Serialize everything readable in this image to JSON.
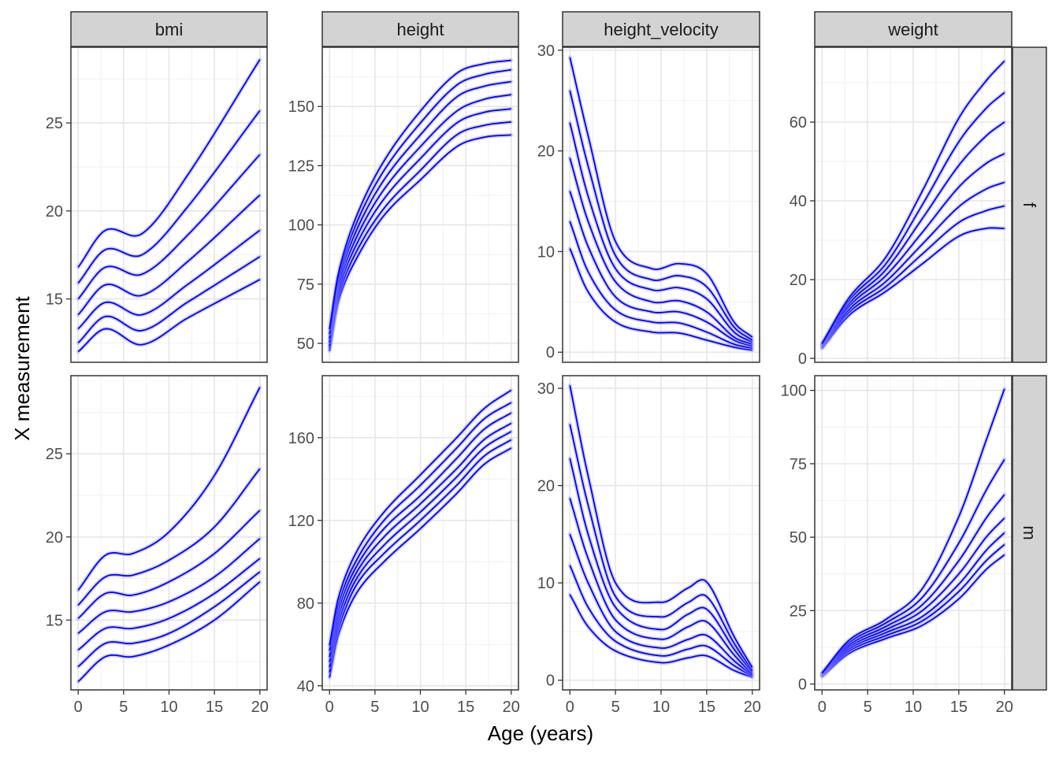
{
  "figure": {
    "xlabel": "Age (years)",
    "ylabel": "X measurement"
  },
  "chart_data": {
    "type": "line",
    "facet_columns": [
      "bmi",
      "height",
      "height_velocity",
      "weight"
    ],
    "facet_rows": [
      "f",
      "m"
    ],
    "xlim": [
      -0.8,
      20.8
    ],
    "x_ticks": [
      0,
      5,
      10,
      15,
      20
    ],
    "x_tick_labels": [
      "0",
      "5",
      "10",
      "15",
      "20"
    ],
    "grid": true,
    "line_color": "#0000ff",
    "point_color": "#9a9aff",
    "strip_fill": "#d3d3d3",
    "panels": [
      {
        "variable": "bmi",
        "sex": "f",
        "ylim": [
          11.4,
          29.3
        ],
        "y_ticks": [
          15,
          20,
          25
        ],
        "y_tick_labels": [
          "15",
          "20",
          "25"
        ],
        "x": [
          0,
          3,
          7,
          12,
          20
        ],
        "series": [
          {
            "values": [
              12.0,
              13.3,
              12.4,
              13.9,
              16.1
            ]
          },
          {
            "values": [
              12.5,
              14.0,
              13.2,
              14.8,
              17.4
            ]
          },
          {
            "values": [
              13.3,
              14.8,
              14.1,
              15.8,
              18.9
            ]
          },
          {
            "values": [
              14.1,
              15.8,
              15.2,
              17.1,
              20.9
            ]
          },
          {
            "values": [
              15.0,
              16.8,
              16.4,
              18.6,
              23.2
            ]
          },
          {
            "values": [
              15.9,
              17.8,
              17.5,
              20.2,
              25.7
            ]
          },
          {
            "values": [
              16.8,
              18.9,
              18.7,
              22.0,
              28.6
            ]
          }
        ]
      },
      {
        "variable": "height",
        "sex": "f",
        "ylim": [
          42,
          175
        ],
        "y_ticks": [
          50,
          75,
          100,
          125,
          150
        ],
        "y_tick_labels": [
          "50",
          "75",
          "100",
          "125",
          "150"
        ],
        "x": [
          0,
          1,
          3,
          6,
          10,
          14,
          17,
          20
        ],
        "series": [
          {
            "values": [
              46.8,
              68.0,
              86.0,
              104.0,
              119.0,
              133.0,
              137.0,
              138.0
            ]
          },
          {
            "values": [
              48.0,
              70.0,
              89.0,
              107.0,
              123.0,
              138.0,
              142.0,
              143.5
            ]
          },
          {
            "values": [
              49.0,
              72.0,
              92.0,
              111.0,
              128.0,
              143.0,
              147.5,
              149.0
            ]
          },
          {
            "values": [
              50.5,
              74.0,
              95.0,
              115.0,
              133.0,
              148.0,
              153.0,
              155.0
            ]
          },
          {
            "values": [
              52.0,
              76.0,
              98.0,
              119.0,
              138.0,
              154.0,
              158.5,
              160.5
            ]
          },
          {
            "values": [
              54.0,
              78.0,
              101.0,
              123.0,
              143.0,
              159.0,
              163.5,
              165.5
            ]
          },
          {
            "values": [
              56.0,
              80.0,
              104.0,
              127.0,
              148.0,
              164.0,
              168.0,
              169.5
            ]
          }
        ]
      },
      {
        "variable": "height_velocity",
        "sex": "f",
        "ylim": [
          -1.0,
          30.3
        ],
        "y_ticks": [
          0,
          10,
          20,
          30
        ],
        "y_tick_labels": [
          "0",
          "10",
          "20",
          "30"
        ],
        "x": [
          0,
          2,
          5,
          9,
          12,
          15,
          18,
          20
        ],
        "series": [
          {
            "values": [
              10.3,
              6.0,
              3.0,
              2.0,
              1.9,
              1.2,
              0.5,
              0.2
            ]
          },
          {
            "values": [
              13.0,
              8.0,
              4.2,
              3.0,
              2.9,
              2.0,
              0.8,
              0.4
            ]
          },
          {
            "values": [
              16.0,
              10.5,
              5.5,
              4.0,
              4.0,
              3.0,
              1.2,
              0.6
            ]
          },
          {
            "values": [
              19.3,
              13.0,
              7.0,
              5.0,
              5.1,
              4.0,
              1.5,
              0.8
            ]
          },
          {
            "values": [
              22.8,
              15.5,
              8.3,
              6.2,
              6.4,
              5.3,
              2.0,
              1.0
            ]
          },
          {
            "values": [
              26.0,
              18.5,
              9.6,
              7.2,
              7.6,
              6.5,
              2.5,
              1.2
            ]
          },
          {
            "values": [
              29.3,
              21.5,
              11.0,
              8.3,
              8.8,
              7.8,
              3.0,
              1.5
            ]
          }
        ]
      },
      {
        "variable": "weight",
        "sex": "f",
        "ylim": [
          -1.0,
          79.0
        ],
        "y_ticks": [
          0,
          20,
          40,
          60
        ],
        "y_tick_labels": [
          "0",
          "20",
          "40",
          "60"
        ],
        "x": [
          0,
          3,
          7,
          11,
          15,
          18,
          20
        ],
        "series": [
          {
            "values": [
              2.5,
              11.0,
              17.0,
              24.0,
              31.0,
              33.0,
              33.0
            ]
          },
          {
            "values": [
              2.8,
              11.8,
              18.2,
              26.5,
              34.5,
              37.5,
              38.7
            ]
          },
          {
            "values": [
              3.0,
              12.5,
              19.5,
              29.0,
              38.5,
              43.0,
              44.7
            ]
          },
          {
            "values": [
              3.2,
              13.3,
              21.0,
              32.0,
              43.5,
              49.5,
              52.0
            ]
          },
          {
            "values": [
              3.4,
              14.0,
              22.5,
              35.5,
              49.0,
              56.5,
              60.0
            ]
          },
          {
            "values": [
              3.6,
              14.8,
              24.0,
              39.0,
              55.0,
              63.5,
              67.5
            ]
          },
          {
            "values": [
              3.8,
              15.5,
              25.7,
              42.5,
              61.0,
              70.5,
              75.5
            ]
          }
        ]
      },
      {
        "variable": "bmi",
        "sex": "m",
        "ylim": [
          10.8,
          29.7
        ],
        "y_ticks": [
          15,
          20,
          25
        ],
        "y_tick_labels": [
          "15",
          "20",
          "25"
        ],
        "x": [
          0,
          3,
          6,
          10,
          15,
          20
        ],
        "series": [
          {
            "values": [
              11.3,
              12.8,
              12.8,
              13.5,
              15.0,
              17.3
            ]
          },
          {
            "values": [
              12.2,
              13.6,
              13.6,
              14.2,
              15.8,
              17.9
            ]
          },
          {
            "values": [
              13.2,
              14.5,
              14.5,
              15.1,
              16.6,
              18.7
            ]
          },
          {
            "values": [
              14.2,
              15.5,
              15.5,
              16.1,
              17.6,
              19.9
            ]
          },
          {
            "values": [
              15.1,
              16.6,
              16.5,
              17.3,
              19.0,
              21.6
            ]
          },
          {
            "values": [
              15.9,
              17.6,
              17.7,
              18.6,
              20.6,
              24.1
            ]
          },
          {
            "values": [
              16.8,
              18.9,
              19.0,
              20.3,
              23.7,
              29.0
            ]
          }
        ]
      },
      {
        "variable": "height",
        "sex": "m",
        "ylim": [
          38,
          190
        ],
        "y_ticks": [
          40,
          80,
          120,
          160
        ],
        "y_tick_labels": [
          "40",
          "80",
          "120",
          "160"
        ],
        "x": [
          0,
          1,
          3,
          6,
          10,
          14,
          17,
          20
        ],
        "series": [
          {
            "values": [
              44.0,
              65.0,
              85.0,
              100.0,
              116.0,
              133.0,
              147.0,
              155.0
            ]
          },
          {
            "values": [
              46.5,
              68.0,
              89.0,
              104.0,
              120.0,
              137.0,
              151.0,
              159.0
            ]
          },
          {
            "values": [
              49.0,
              71.0,
              92.0,
              108.0,
              124.0,
              141.0,
              155.0,
              163.0
            ]
          },
          {
            "values": [
              51.5,
              74.0,
              95.0,
              112.0,
              128.0,
              145.0,
              159.0,
              167.0
            ]
          },
          {
            "values": [
              54.0,
              77.0,
              98.0,
              116.0,
              132.0,
              150.0,
              164.0,
              172.0
            ]
          },
          {
            "values": [
              57.0,
              80.0,
              101.0,
              120.0,
              137.0,
              155.0,
              169.0,
              177.0
            ]
          },
          {
            "values": [
              59.5,
              83.0,
              105.0,
              124.0,
              142.0,
              160.0,
              174.0,
              183.0
            ]
          }
        ]
      },
      {
        "variable": "height_velocity",
        "sex": "m",
        "ylim": [
          -1.0,
          31.3
        ],
        "y_ticks": [
          0,
          10,
          20,
          30
        ],
        "y_tick_labels": [
          "0",
          "10",
          "20",
          "30"
        ],
        "x": [
          0,
          2,
          5,
          10,
          13,
          15,
          18,
          20
        ],
        "series": [
          {
            "values": [
              8.8,
              5.5,
              3.0,
              1.8,
              2.3,
              2.5,
              1.0,
              0.3
            ]
          },
          {
            "values": [
              11.8,
              7.5,
              4.0,
              2.5,
              3.2,
              3.5,
              1.5,
              0.4
            ]
          },
          {
            "values": [
              15.0,
              10.0,
              5.0,
              3.3,
              4.2,
              4.6,
              2.0,
              0.5
            ]
          },
          {
            "values": [
              18.7,
              12.5,
              6.2,
              4.2,
              5.5,
              6.0,
              2.6,
              0.6
            ]
          },
          {
            "values": [
              22.8,
              15.0,
              7.5,
              5.2,
              6.8,
              7.3,
              3.2,
              0.8
            ]
          },
          {
            "values": [
              26.3,
              18.0,
              8.6,
              6.5,
              8.0,
              8.6,
              3.8,
              1.0
            ]
          },
          {
            "values": [
              30.3,
              21.0,
              10.0,
              8.0,
              9.5,
              10.1,
              4.5,
              1.3
            ]
          }
        ]
      },
      {
        "variable": "weight",
        "sex": "m",
        "ylim": [
          -2.0,
          105.0
        ],
        "y_ticks": [
          0,
          25,
          50,
          75,
          100
        ],
        "y_tick_labels": [
          "0",
          "25",
          "50",
          "75",
          "100"
        ],
        "x": [
          0,
          3,
          7,
          11,
          15,
          18,
          20
        ],
        "series": [
          {
            "values": [
              2.5,
              10.5,
              15.5,
              20.0,
              29.0,
              39.0,
              44.0
            ]
          },
          {
            "values": [
              2.8,
              11.3,
              16.5,
              21.5,
              31.5,
              42.0,
              47.5
            ]
          },
          {
            "values": [
              3.0,
              12.0,
              17.5,
              23.0,
              34.0,
              45.5,
              51.5
            ]
          },
          {
            "values": [
              3.2,
              12.7,
              18.5,
              25.0,
              37.5,
              50.0,
              56.5
            ]
          },
          {
            "values": [
              3.4,
              13.4,
              19.6,
              27.0,
              42.0,
              56.5,
              64.5
            ]
          },
          {
            "values": [
              3.6,
              14.2,
              20.8,
              29.5,
              48.0,
              66.0,
              76.5
            ]
          },
          {
            "values": [
              3.8,
              15.0,
              22.0,
              32.5,
              57.0,
              83.0,
              100.5
            ]
          }
        ]
      }
    ]
  }
}
